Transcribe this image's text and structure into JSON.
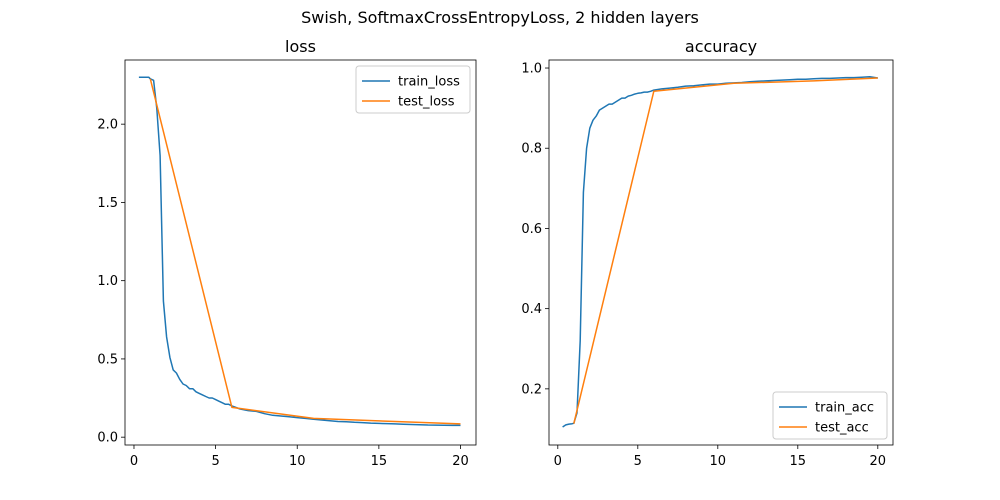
{
  "figure": {
    "suptitle": "Swish, SoftmaxCrossEntropyLoss, 2 hidden layers"
  },
  "chart_data": [
    {
      "type": "line",
      "title": "loss",
      "xlabel": "",
      "ylabel": "",
      "xlim": [
        -0.55,
        20.95
      ],
      "ylim": [
        -0.05,
        2.41
      ],
      "xticks": [
        0,
        5,
        10,
        15,
        20
      ],
      "xtick_labels": [
        "0",
        "5",
        "10",
        "15",
        "20"
      ],
      "yticks": [
        0.0,
        0.5,
        1.0,
        1.5,
        2.0
      ],
      "ytick_labels": [
        "0.0",
        "0.5",
        "1.0",
        "1.5",
        "2.0"
      ],
      "grid": false,
      "legend": "top-right",
      "series": [
        {
          "name": "train_loss",
          "color": "#1f77b4",
          "x": [
            0.3,
            0.5,
            0.7,
            0.9,
            1.0,
            1.2,
            1.4,
            1.6,
            1.8,
            2.0,
            2.2,
            2.4,
            2.6,
            2.8,
            3.0,
            3.2,
            3.4,
            3.6,
            3.8,
            4.0,
            4.2,
            4.4,
            4.6,
            4.8,
            5.0,
            5.2,
            5.4,
            5.6,
            5.8,
            6.0,
            6.5,
            7.0,
            7.5,
            8.0,
            8.5,
            9.0,
            9.5,
            10.0,
            10.5,
            11.0,
            11.5,
            12.0,
            12.5,
            13.0,
            13.5,
            14.0,
            14.5,
            15.0,
            15.5,
            16.0,
            16.5,
            17.0,
            17.5,
            18.0,
            18.5,
            19.0,
            19.5,
            20.0
          ],
          "values": [
            2.3,
            2.3,
            2.3,
            2.3,
            2.29,
            2.28,
            2.1,
            1.8,
            0.87,
            0.64,
            0.51,
            0.43,
            0.41,
            0.37,
            0.34,
            0.33,
            0.31,
            0.31,
            0.29,
            0.28,
            0.27,
            0.26,
            0.25,
            0.25,
            0.24,
            0.23,
            0.22,
            0.21,
            0.21,
            0.2,
            0.18,
            0.17,
            0.165,
            0.15,
            0.14,
            0.135,
            0.13,
            0.125,
            0.12,
            0.115,
            0.11,
            0.105,
            0.1,
            0.098,
            0.095,
            0.093,
            0.09,
            0.088,
            0.087,
            0.085,
            0.083,
            0.081,
            0.08,
            0.078,
            0.077,
            0.076,
            0.075,
            0.075
          ]
        },
        {
          "name": "test_loss",
          "color": "#ff7f0e",
          "x": [
            1,
            6,
            11,
            16,
            20
          ],
          "values": [
            2.29,
            0.19,
            0.12,
            0.1,
            0.085
          ]
        }
      ]
    },
    {
      "type": "line",
      "title": "accuracy",
      "xlabel": "",
      "ylabel": "",
      "xlim": [
        -0.55,
        20.95
      ],
      "ylim": [
        0.06,
        1.02
      ],
      "xticks": [
        0,
        5,
        10,
        15,
        20
      ],
      "xtick_labels": [
        "0",
        "5",
        "10",
        "15",
        "20"
      ],
      "yticks": [
        0.2,
        0.4,
        0.6,
        0.8,
        1.0
      ],
      "ytick_labels": [
        "0.2",
        "0.4",
        "0.6",
        "0.8",
        "1.0"
      ],
      "grid": false,
      "legend": "bottom-right",
      "series": [
        {
          "name": "train_acc",
          "color": "#1f77b4",
          "x": [
            0.3,
            0.5,
            0.7,
            0.9,
            1.0,
            1.2,
            1.4,
            1.6,
            1.8,
            2.0,
            2.2,
            2.4,
            2.6,
            2.8,
            3.0,
            3.2,
            3.4,
            3.6,
            3.8,
            4.0,
            4.2,
            4.4,
            4.6,
            4.8,
            5.0,
            5.2,
            5.4,
            5.6,
            5.8,
            6.0,
            6.5,
            7.0,
            7.5,
            8.0,
            8.5,
            9.0,
            9.5,
            10.0,
            10.5,
            11.0,
            11.5,
            12.0,
            12.5,
            13.0,
            13.5,
            14.0,
            14.5,
            15.0,
            15.5,
            16.0,
            16.5,
            17.0,
            17.5,
            18.0,
            18.5,
            19.0,
            19.5,
            20.0
          ],
          "values": [
            0.105,
            0.11,
            0.112,
            0.113,
            0.114,
            0.14,
            0.32,
            0.69,
            0.8,
            0.85,
            0.87,
            0.88,
            0.895,
            0.9,
            0.905,
            0.91,
            0.91,
            0.915,
            0.92,
            0.925,
            0.925,
            0.93,
            0.932,
            0.935,
            0.937,
            0.938,
            0.94,
            0.94,
            0.942,
            0.945,
            0.948,
            0.95,
            0.952,
            0.955,
            0.956,
            0.958,
            0.96,
            0.96,
            0.962,
            0.963,
            0.964,
            0.966,
            0.967,
            0.968,
            0.969,
            0.97,
            0.971,
            0.972,
            0.972,
            0.973,
            0.974,
            0.974,
            0.975,
            0.976,
            0.976,
            0.977,
            0.978,
            0.975
          ]
        },
        {
          "name": "test_acc",
          "color": "#ff7f0e",
          "x": [
            1,
            6,
            11,
            16,
            20
          ],
          "values": [
            0.113,
            0.942,
            0.962,
            0.968,
            0.975
          ]
        }
      ]
    }
  ]
}
